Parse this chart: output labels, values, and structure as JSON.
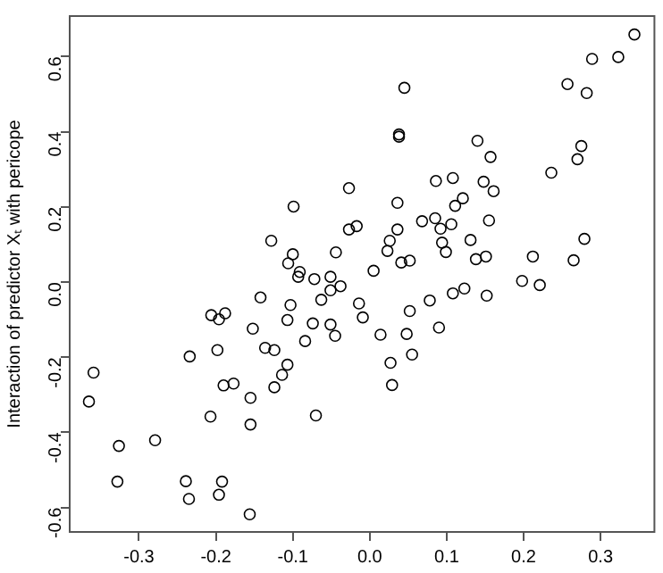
{
  "chart_data": {
    "type": "scatter",
    "ylabel": "Interaction of predictor Xₜ with pericope",
    "x": [
      0.344,
      0.323,
      0.289,
      0.257,
      0.282,
      0.045,
      0.038,
      0.038,
      0.14,
      0.275,
      0.27,
      0.157,
      0.236,
      0.108,
      0.086,
      0.148,
      0.161,
      -0.027,
      0.121,
      0.111,
      0.036,
      -0.099,
      0.068,
      0.085,
      0.155,
      -0.027,
      -0.017,
      0.036,
      0.092,
      0.106,
      -0.128,
      0.026,
      0.131,
      0.279,
      0.094,
      0.023,
      0.099,
      -0.044,
      -0.1,
      -0.106,
      0.041,
      0.052,
      0.138,
      0.151,
      0.212,
      0.265,
      -0.091,
      -0.093,
      -0.072,
      -0.051,
      0.005,
      0.198,
      0.221,
      -0.038,
      -0.051,
      -0.063,
      -0.014,
      -0.103,
      -0.142,
      0.108,
      0.123,
      0.152,
      0.078,
      0.052,
      -0.206,
      -0.188,
      -0.196,
      -0.107,
      -0.074,
      -0.009,
      -0.051,
      -0.152,
      0.09,
      -0.084,
      -0.045,
      0.014,
      0.048,
      -0.198,
      -0.136,
      -0.124,
      0.055,
      -0.234,
      0.027,
      -0.107,
      -0.114,
      -0.19,
      -0.177,
      -0.124,
      0.029,
      -0.359,
      -0.365,
      -0.155,
      -0.07,
      -0.207,
      -0.155,
      -0.279,
      -0.326,
      -0.328,
      -0.239,
      -0.192,
      -0.235,
      -0.196,
      -0.156
    ],
    "values": [
      0.659,
      0.599,
      0.594,
      0.527,
      0.503,
      0.517,
      0.393,
      0.387,
      0.376,
      0.362,
      0.327,
      0.333,
      0.291,
      0.277,
      0.269,
      0.267,
      0.242,
      0.25,
      0.223,
      0.203,
      0.211,
      0.201,
      0.162,
      0.17,
      0.164,
      0.14,
      0.149,
      0.14,
      0.142,
      0.154,
      0.11,
      0.11,
      0.112,
      0.115,
      0.105,
      0.083,
      0.08,
      0.079,
      0.074,
      0.05,
      0.052,
      0.057,
      0.061,
      0.068,
      0.068,
      0.058,
      0.027,
      0.014,
      0.008,
      0.014,
      0.03,
      0.003,
      -0.008,
      -0.011,
      -0.022,
      -0.047,
      -0.057,
      -0.061,
      -0.041,
      -0.03,
      -0.017,
      -0.036,
      -0.049,
      -0.077,
      -0.088,
      -0.083,
      -0.099,
      -0.101,
      -0.11,
      -0.094,
      -0.113,
      -0.124,
      -0.121,
      -0.157,
      -0.143,
      -0.14,
      -0.138,
      -0.181,
      -0.175,
      -0.181,
      -0.193,
      -0.198,
      -0.215,
      -0.22,
      -0.247,
      -0.275,
      -0.27,
      -0.28,
      -0.274,
      -0.241,
      -0.318,
      -0.308,
      -0.355,
      -0.358,
      -0.379,
      -0.421,
      -0.436,
      -0.531,
      -0.53,
      -0.531,
      -0.577,
      -0.566,
      -0.618
    ],
    "color": "#000000",
    "marker": "circle",
    "xlim": [
      -0.39,
      0.37
    ],
    "ylim": [
      -0.665,
      0.708
    ],
    "xticks": [
      {
        "value": -0.3,
        "label": "-0.3"
      },
      {
        "value": -0.2,
        "label": "-0.2"
      },
      {
        "value": -0.1,
        "label": "-0.1"
      },
      {
        "value": 0,
        "label": "0.0"
      },
      {
        "value": 0.1,
        "label": "0.1"
      },
      {
        "value": 0.2,
        "label": "0.2"
      },
      {
        "value": 0.3,
        "label": "0.3"
      }
    ],
    "yticks": [
      {
        "value": -0.6,
        "label": "-0.6"
      },
      {
        "value": -0.4,
        "label": "-0.4"
      },
      {
        "value": -0.2,
        "label": "-0.2"
      },
      {
        "value": 0,
        "label": "0.0"
      },
      {
        "value": 0.2,
        "label": "0.2"
      },
      {
        "value": 0.4,
        "label": "0.4"
      },
      {
        "value": 0.6,
        "label": "0.6"
      }
    ],
    "grid": false,
    "legend": false
  }
}
